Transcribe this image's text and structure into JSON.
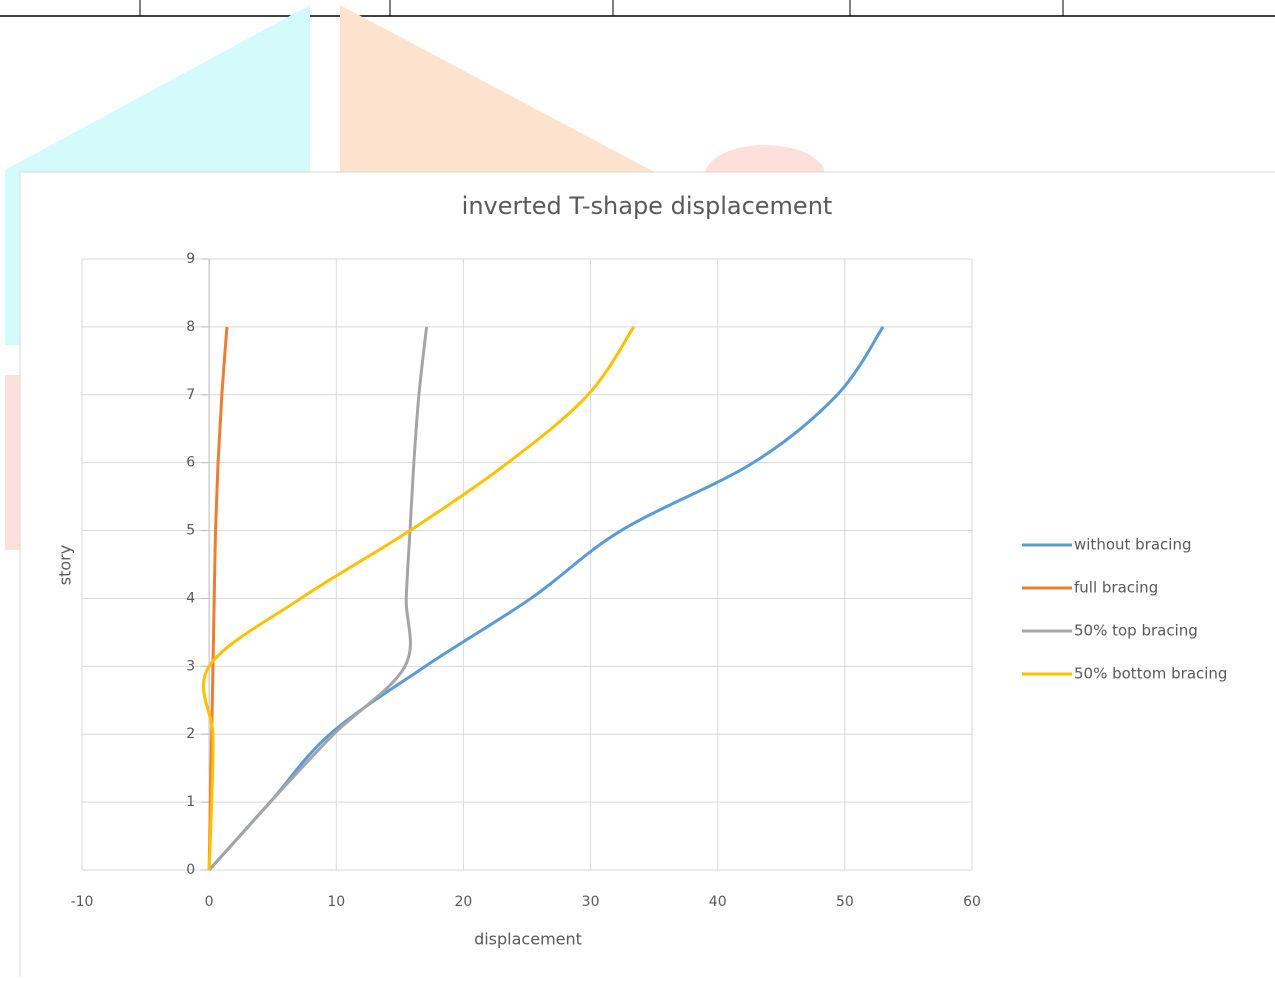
{
  "chart_data": {
    "type": "line",
    "title": "inverted T-shape displacement",
    "x_label": "displacement",
    "y_label": "story",
    "xlim": [
      -10,
      60
    ],
    "xticks": [
      -10,
      0,
      10,
      20,
      30,
      40,
      50,
      60
    ],
    "ylim": [
      0,
      9
    ],
    "yticks": [
      0,
      1,
      2,
      3,
      4,
      5,
      6,
      7,
      8,
      9
    ],
    "grid": true,
    "smooth": true,
    "legend": "right",
    "series": [
      {
        "name": "without bracing",
        "color": "#5b9bd5",
        "x": [
          0,
          4.8,
          9.5,
          17,
          25.3,
          32.4,
          42.8,
          49.4,
          53
        ],
        "values": [
          0,
          1,
          2,
          3,
          4,
          5,
          6,
          7,
          8
        ]
      },
      {
        "name": "full bracing",
        "color": "#ed7d31",
        "x": [
          0,
          0.1,
          0.2,
          0.3,
          0.4,
          0.5,
          0.7,
          1.0,
          1.4
        ],
        "values": [
          0,
          1,
          2,
          3,
          4,
          5,
          6,
          7,
          8
        ]
      },
      {
        "name": "50% top bracing",
        "color": "#a5a5a5",
        "x": [
          0,
          4.8,
          9.8,
          15.4,
          15.5,
          15.8,
          16.1,
          16.5,
          17.1
        ],
        "values": [
          0,
          1,
          2,
          3,
          4,
          5,
          6,
          7,
          8
        ]
      },
      {
        "name": "50% bottom bracing",
        "color": "#ffc000",
        "x": [
          0,
          0.2,
          0.3,
          0,
          7.2,
          15.8,
          23.5,
          29.8,
          33.4
        ],
        "values": [
          0,
          1,
          2,
          3,
          4,
          5,
          6,
          7,
          8
        ]
      }
    ]
  }
}
